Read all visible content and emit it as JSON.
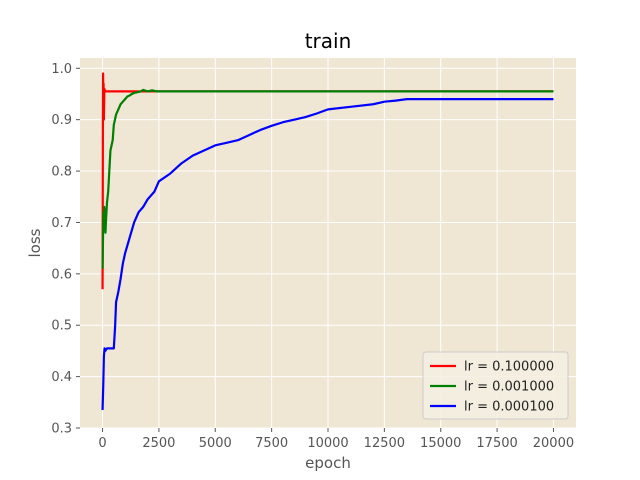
{
  "chart_data": {
    "type": "line",
    "title": "train",
    "xlabel": "epoch",
    "ylabel": "loss",
    "xlim": [
      -1000,
      21000
    ],
    "ylim": [
      0.3,
      1.02
    ],
    "xticks": [
      0,
      2500,
      5000,
      7500,
      10000,
      12500,
      15000,
      17500,
      20000
    ],
    "yticks": [
      0.3,
      0.4,
      0.5,
      0.6,
      0.7,
      0.8,
      0.9,
      1.0
    ],
    "xtick_labels": [
      "0",
      "2500",
      "5000",
      "7500",
      "10000",
      "12500",
      "15000",
      "17500",
      "20000"
    ],
    "ytick_labels": [
      "0.3",
      "0.4",
      "0.5",
      "0.6",
      "0.7",
      "0.8",
      "0.9",
      "1.0"
    ],
    "grid": true,
    "legend_position": "bottom-right",
    "colors": {
      "background": "#efe6d4",
      "grid": "#ffffff"
    },
    "series": [
      {
        "name": "lr = 0.100000",
        "color": "#ff0000",
        "points": [
          [
            0,
            0.57
          ],
          [
            5,
            0.63
          ],
          [
            15,
            0.88
          ],
          [
            25,
            0.99
          ],
          [
            35,
            0.92
          ],
          [
            45,
            0.97
          ],
          [
            60,
            0.9
          ],
          [
            80,
            0.96
          ],
          [
            120,
            0.955
          ],
          [
            200,
            0.955
          ],
          [
            500,
            0.955
          ],
          [
            1000,
            0.955
          ],
          [
            1500,
            0.955
          ],
          [
            2000,
            0.955
          ],
          [
            5000,
            0.955
          ],
          [
            10000,
            0.955
          ],
          [
            15000,
            0.955
          ],
          [
            20000,
            0.955
          ]
        ]
      },
      {
        "name": "lr = 0.001000",
        "color": "#008000",
        "points": [
          [
            0,
            0.61
          ],
          [
            20,
            0.67
          ],
          [
            40,
            0.72
          ],
          [
            60,
            0.69
          ],
          [
            80,
            0.73
          ],
          [
            100,
            0.7
          ],
          [
            130,
            0.68
          ],
          [
            160,
            0.71
          ],
          [
            200,
            0.74
          ],
          [
            250,
            0.76
          ],
          [
            300,
            0.8
          ],
          [
            350,
            0.84
          ],
          [
            400,
            0.85
          ],
          [
            450,
            0.86
          ],
          [
            500,
            0.89
          ],
          [
            600,
            0.91
          ],
          [
            700,
            0.92
          ],
          [
            800,
            0.93
          ],
          [
            900,
            0.935
          ],
          [
            1000,
            0.94
          ],
          [
            1100,
            0.945
          ],
          [
            1200,
            0.947
          ],
          [
            1300,
            0.95
          ],
          [
            1400,
            0.952
          ],
          [
            1500,
            0.953
          ],
          [
            1700,
            0.955
          ],
          [
            1800,
            0.958
          ],
          [
            2000,
            0.955
          ],
          [
            2200,
            0.957
          ],
          [
            2400,
            0.955
          ],
          [
            3000,
            0.955
          ],
          [
            5000,
            0.955
          ],
          [
            10000,
            0.955
          ],
          [
            15000,
            0.955
          ],
          [
            20000,
            0.955
          ]
        ]
      },
      {
        "name": "lr = 0.000100",
        "color": "#0000ff",
        "points": [
          [
            0,
            0.335
          ],
          [
            30,
            0.38
          ],
          [
            60,
            0.44
          ],
          [
            90,
            0.455
          ],
          [
            120,
            0.45
          ],
          [
            200,
            0.455
          ],
          [
            300,
            0.455
          ],
          [
            400,
            0.455
          ],
          [
            500,
            0.455
          ],
          [
            560,
            0.5
          ],
          [
            600,
            0.545
          ],
          [
            700,
            0.565
          ],
          [
            800,
            0.59
          ],
          [
            900,
            0.62
          ],
          [
            1000,
            0.64
          ],
          [
            1200,
            0.67
          ],
          [
            1400,
            0.7
          ],
          [
            1600,
            0.72
          ],
          [
            1800,
            0.73
          ],
          [
            2000,
            0.745
          ],
          [
            2300,
            0.76
          ],
          [
            2500,
            0.78
          ],
          [
            3000,
            0.795
          ],
          [
            3500,
            0.815
          ],
          [
            4000,
            0.83
          ],
          [
            4500,
            0.84
          ],
          [
            5000,
            0.85
          ],
          [
            5500,
            0.855
          ],
          [
            6000,
            0.86
          ],
          [
            6500,
            0.87
          ],
          [
            7000,
            0.88
          ],
          [
            7500,
            0.888
          ],
          [
            8000,
            0.895
          ],
          [
            8500,
            0.9
          ],
          [
            9000,
            0.905
          ],
          [
            9500,
            0.912
          ],
          [
            10000,
            0.92
          ],
          [
            11000,
            0.925
          ],
          [
            12000,
            0.93
          ],
          [
            12500,
            0.935
          ],
          [
            13000,
            0.937
          ],
          [
            13500,
            0.94
          ],
          [
            15000,
            0.94
          ],
          [
            17500,
            0.94
          ],
          [
            20000,
            0.94
          ]
        ]
      }
    ]
  }
}
